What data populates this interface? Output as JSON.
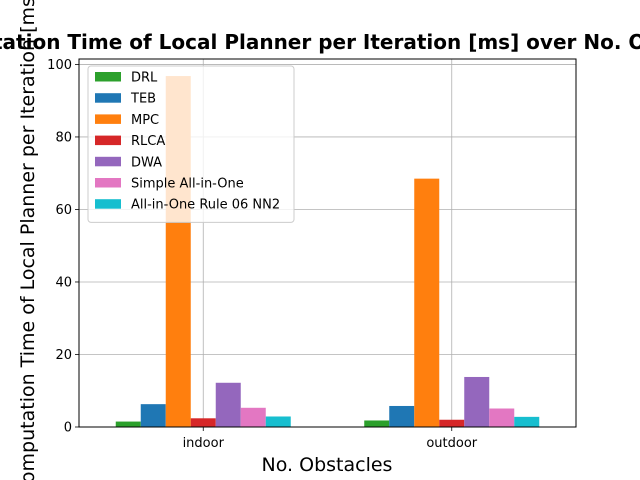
{
  "chart_data": {
    "type": "bar",
    "title": "Computation Time of Local Planner per Iteration [ms] over No. Obstacles",
    "xlabel": "No. Obstacles",
    "ylabel": "Computation Time of Local Planner per Iteration [ms]",
    "categories": [
      "indoor",
      "outdoor"
    ],
    "ylim": [
      0,
      101.5
    ],
    "yticks": [
      0,
      20,
      40,
      60,
      80,
      100
    ],
    "grid": true,
    "legend_position": "top-left",
    "series": [
      {
        "name": "DRL",
        "color": "#2ca02c",
        "values": [
          1.5,
          1.8
        ]
      },
      {
        "name": "TEB",
        "color": "#1f77b4",
        "values": [
          6.3,
          5.8
        ]
      },
      {
        "name": "MPC",
        "color": "#ff7f0e",
        "values": [
          96.8,
          68.5
        ]
      },
      {
        "name": "RLCA",
        "color": "#d62728",
        "values": [
          2.4,
          2.0
        ]
      },
      {
        "name": "DWA",
        "color": "#9467bd",
        "values": [
          12.2,
          13.8
        ]
      },
      {
        "name": "Simple All-in-One",
        "color": "#e377c2",
        "values": [
          5.3,
          5.1
        ]
      },
      {
        "name": "All-in-One Rule 06 NN2",
        "color": "#17becf",
        "values": [
          2.9,
          2.8
        ]
      }
    ]
  }
}
